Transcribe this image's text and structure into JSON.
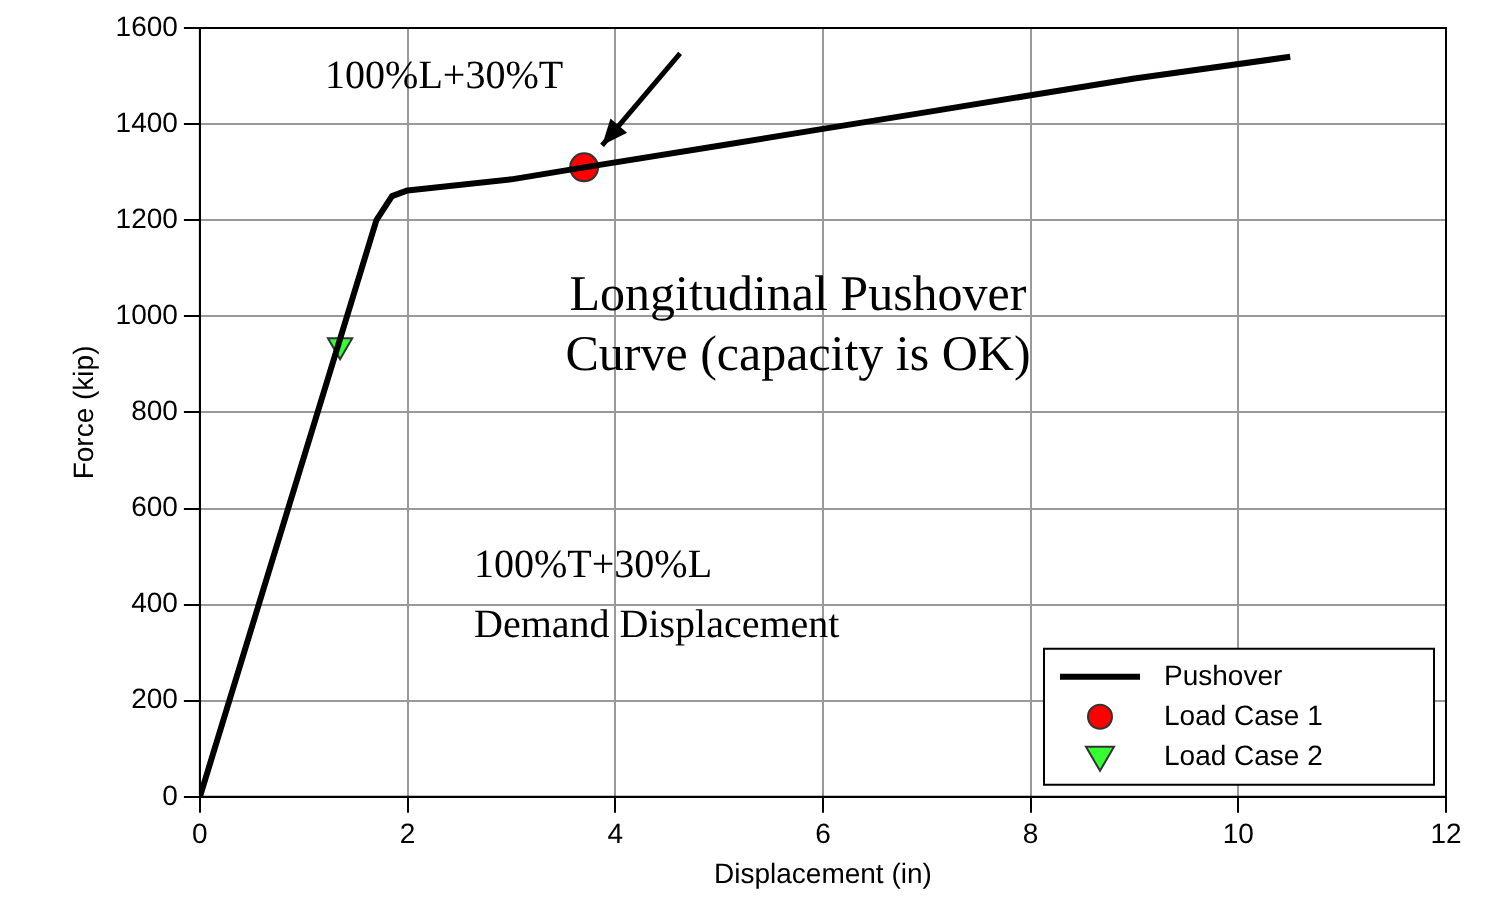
{
  "chart_data": {
    "type": "line",
    "xlabel": "Displacement (in)",
    "ylabel": "Force (kip)",
    "xlim": [
      0,
      12
    ],
    "xticks": [
      0,
      2,
      4,
      6,
      8,
      10,
      12
    ],
    "ylim": [
      0,
      1600
    ],
    "yticks": [
      0,
      200,
      400,
      600,
      800,
      1000,
      1200,
      1400,
      1600
    ],
    "grid": true,
    "legend": "bottom right",
    "series": [
      {
        "name": "Pushover",
        "color": "#000000",
        "marker": "none",
        "x": [
          0,
          1.7,
          1.85,
          2,
          3,
          3.7,
          5,
          6,
          7,
          8,
          9,
          10.5
        ],
        "values": [
          0,
          1200,
          1250,
          1262,
          1285,
          1310,
          1355,
          1390,
          1425,
          1460,
          1495,
          1540
        ]
      },
      {
        "name": "Load Case 1",
        "type": "scatter",
        "color": "#ff0000",
        "marker": "circle",
        "x": [
          3.7
        ],
        "values": [
          1310
        ]
      },
      {
        "name": "Load Case 2",
        "type": "scatter",
        "color": "#33ff33",
        "marker": "triangle",
        "x": [
          1.35
        ],
        "values": [
          940
        ]
      }
    ],
    "annotations": [
      {
        "text": "100%L+30%T",
        "x": 3.7,
        "y": 1310
      },
      "Longitudinal Pushover Curve (capacity is OK)",
      "100%T+30%L Demand Displacement"
    ]
  }
}
